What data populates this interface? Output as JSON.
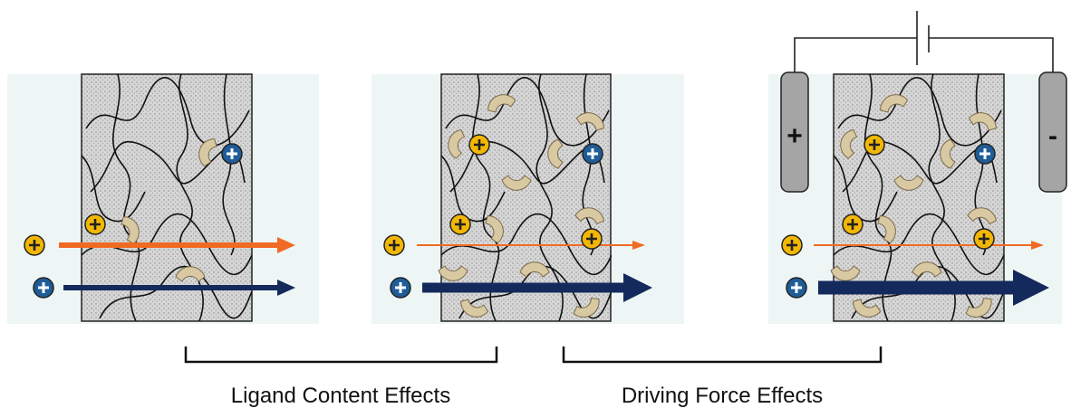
{
  "electrodes": {
    "positive": "+",
    "negative": "-"
  },
  "brackets": [
    {
      "label": "Ligand Content Effects"
    },
    {
      "label": "Driving Force Effects"
    }
  ]
}
